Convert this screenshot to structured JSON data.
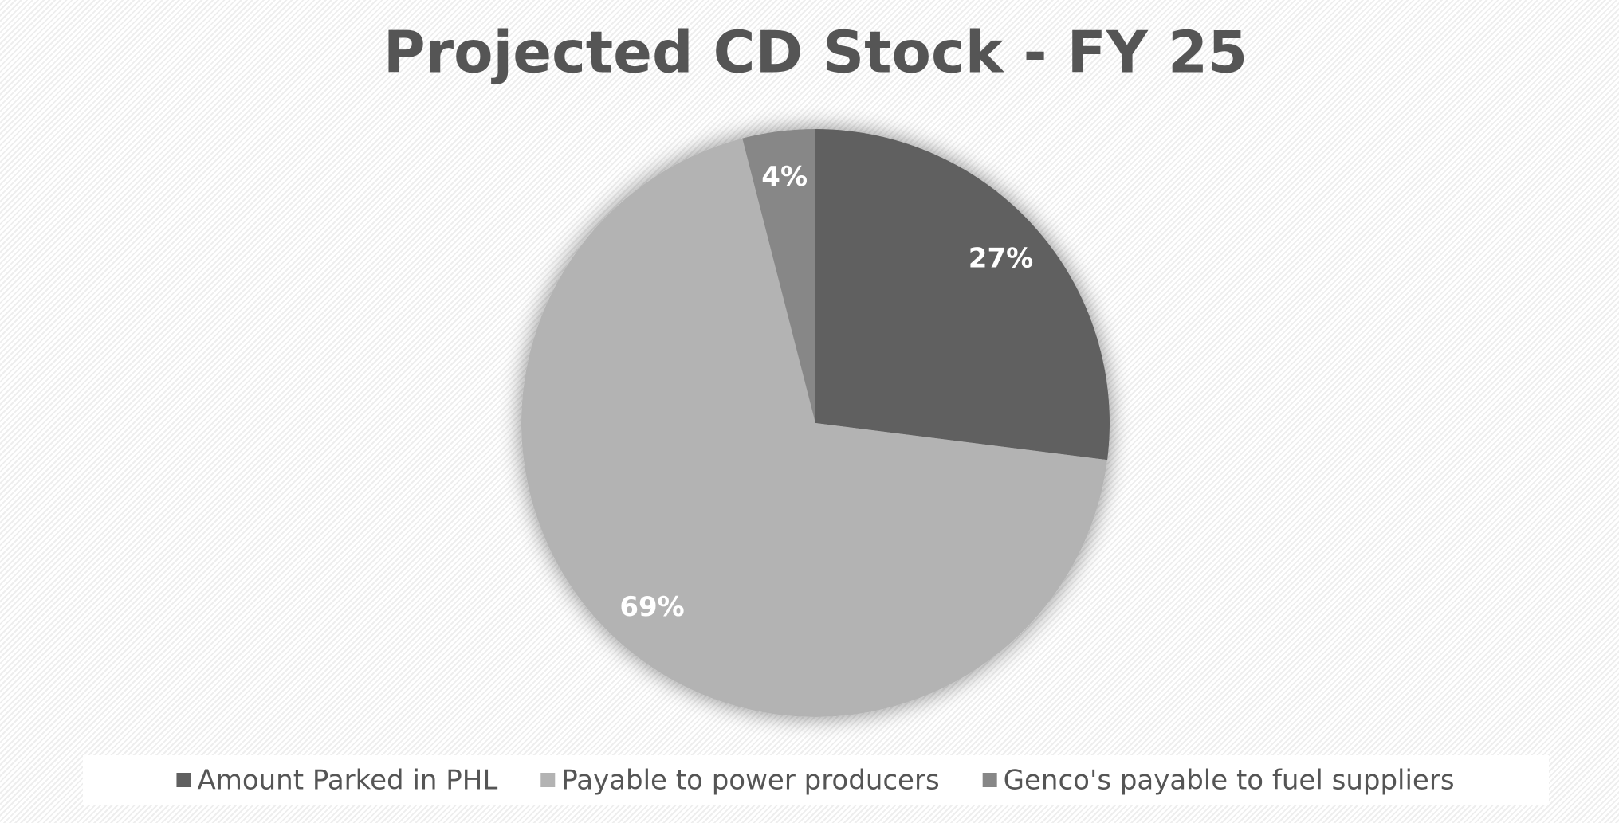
{
  "chart_data": {
    "type": "pie",
    "title": "Projected CD Stock - FY 25",
    "categories": [
      "Amount Parked in PHL",
      "Payable to power producers",
      "Genco's payable to fuel suppliers"
    ],
    "values": [
      27,
      69,
      4
    ],
    "value_labels": [
      "27%",
      "69%",
      "4%"
    ],
    "colors": [
      "#606060",
      "#b3b3b3",
      "#878787"
    ],
    "legend": "bottom"
  }
}
